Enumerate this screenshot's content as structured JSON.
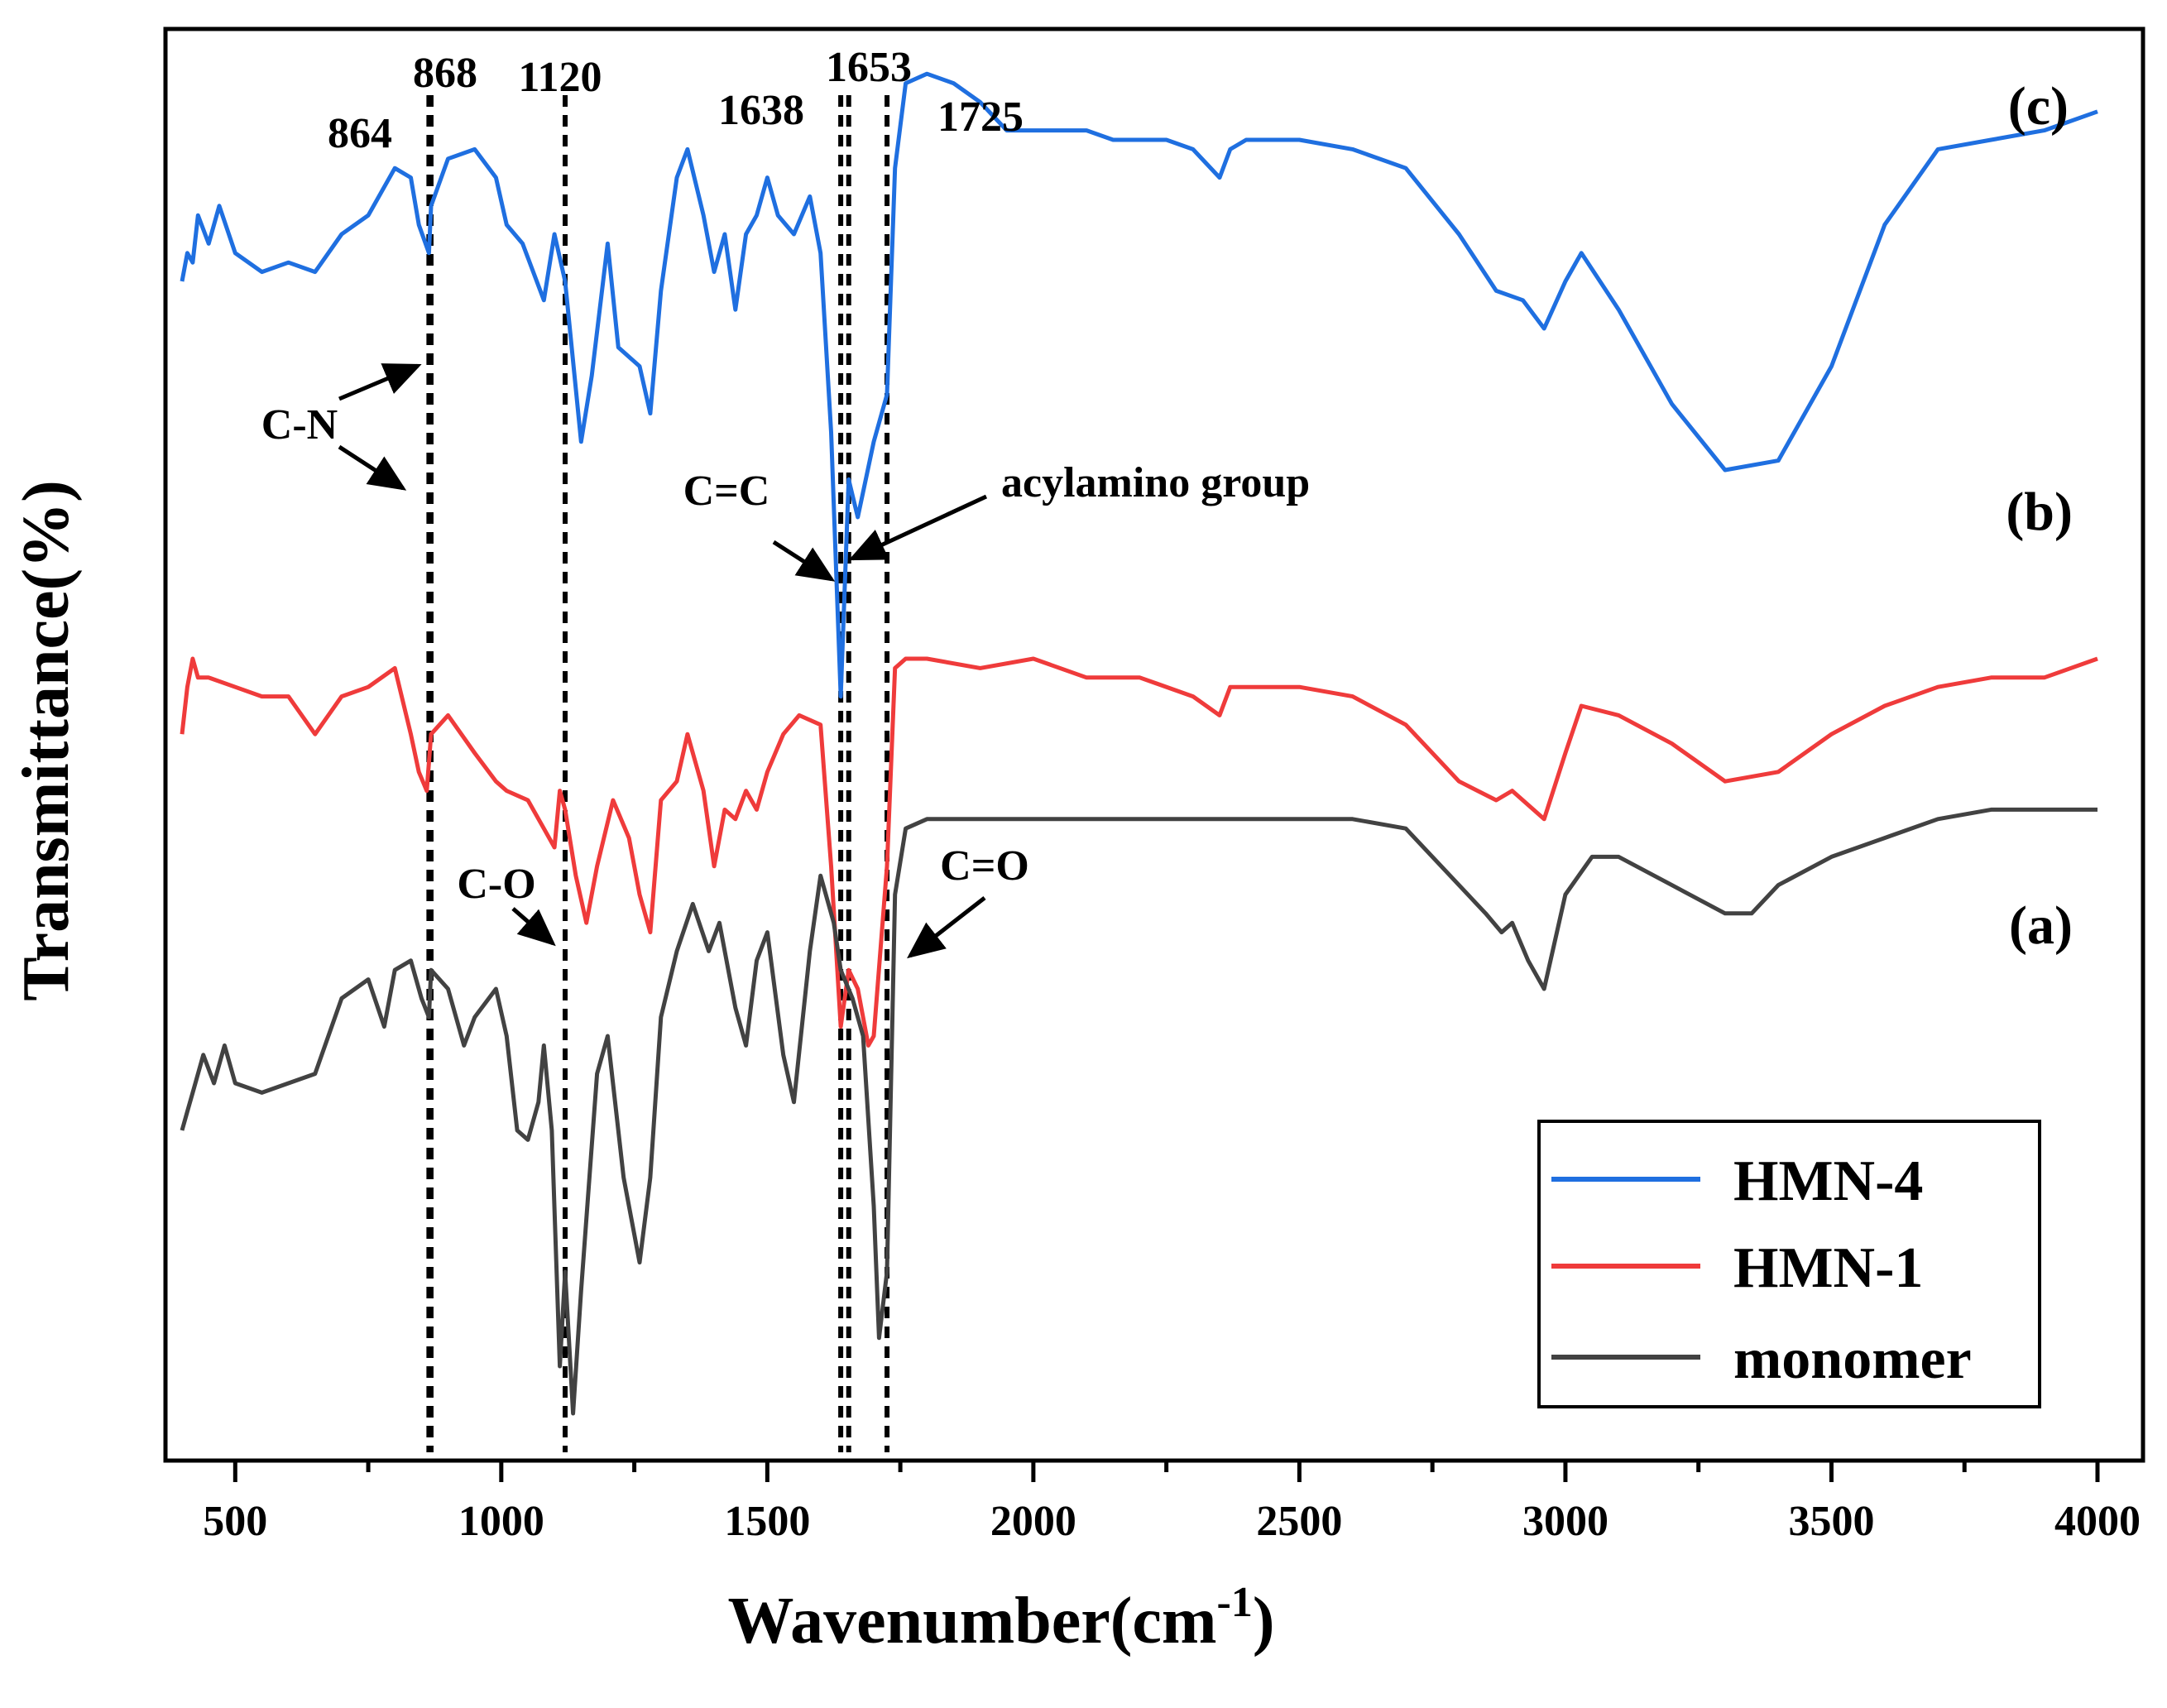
{
  "chart_data": {
    "type": "line",
    "title": "",
    "xlabel": "Wavenumber(cm",
    "xlabel_sup": "-1",
    "xlabel_close": ")",
    "ylabel": "Transmittance(%)",
    "xlim": [
      400,
      4000
    ],
    "xticks": [
      "500",
      "1000",
      "1500",
      "2000",
      "2500",
      "3000",
      "3500",
      "4000"
    ],
    "panel_labels": [
      "(c)",
      "(b)",
      "(a)"
    ],
    "marker_lines": [
      {
        "x": 864,
        "label": "864"
      },
      {
        "x": 868,
        "label": "868"
      },
      {
        "x": 1120,
        "label": "1120"
      },
      {
        "x": 1638,
        "label": "1638"
      },
      {
        "x": 1653,
        "label": "1653"
      },
      {
        "x": 1725,
        "label": "1725"
      }
    ],
    "annotations": [
      "C-N",
      "C=C",
      "acylamino group",
      "C-O",
      "C=O"
    ],
    "legend_position": "bottom-right",
    "series": [
      {
        "name": "HMN-4",
        "color": "#1f6fe0",
        "points": [
          [
            400,
            1.0
          ],
          [
            410,
            1.03
          ],
          [
            420,
            1.02
          ],
          [
            430,
            1.07
          ],
          [
            450,
            1.04
          ],
          [
            470,
            1.08
          ],
          [
            500,
            1.03
          ],
          [
            550,
            1.01
          ],
          [
            600,
            1.02
          ],
          [
            650,
            1.01
          ],
          [
            700,
            1.05
          ],
          [
            750,
            1.07
          ],
          [
            800,
            1.12
          ],
          [
            830,
            1.11
          ],
          [
            845,
            1.06
          ],
          [
            864,
            1.03
          ],
          [
            868,
            1.08
          ],
          [
            900,
            1.13
          ],
          [
            950,
            1.14
          ],
          [
            990,
            1.11
          ],
          [
            1010,
            1.06
          ],
          [
            1040,
            1.04
          ],
          [
            1080,
            0.98
          ],
          [
            1100,
            1.05
          ],
          [
            1120,
            1.0
          ],
          [
            1150,
            0.83
          ],
          [
            1170,
            0.9
          ],
          [
            1200,
            1.04
          ],
          [
            1220,
            0.93
          ],
          [
            1260,
            0.91
          ],
          [
            1280,
            0.86
          ],
          [
            1300,
            0.99
          ],
          [
            1330,
            1.11
          ],
          [
            1350,
            1.14
          ],
          [
            1380,
            1.07
          ],
          [
            1400,
            1.01
          ],
          [
            1420,
            1.05
          ],
          [
            1440,
            0.97
          ],
          [
            1460,
            1.05
          ],
          [
            1480,
            1.07
          ],
          [
            1500,
            1.11
          ],
          [
            1520,
            1.07
          ],
          [
            1550,
            1.05
          ],
          [
            1580,
            1.09
          ],
          [
            1600,
            1.03
          ],
          [
            1620,
            0.84
          ],
          [
            1638,
            0.56
          ],
          [
            1653,
            0.79
          ],
          [
            1670,
            0.75
          ],
          [
            1700,
            0.83
          ],
          [
            1725,
            0.88
          ],
          [
            1740,
            1.12
          ],
          [
            1760,
            1.21
          ],
          [
            1800,
            1.22
          ],
          [
            1850,
            1.21
          ],
          [
            1900,
            1.19
          ],
          [
            1950,
            1.16
          ],
          [
            2000,
            1.16
          ],
          [
            2100,
            1.16
          ],
          [
            2150,
            1.15
          ],
          [
            2250,
            1.15
          ],
          [
            2300,
            1.14
          ],
          [
            2350,
            1.11
          ],
          [
            2370,
            1.14
          ],
          [
            2400,
            1.15
          ],
          [
            2500,
            1.15
          ],
          [
            2600,
            1.14
          ],
          [
            2700,
            1.12
          ],
          [
            2800,
            1.05
          ],
          [
            2870,
            0.99
          ],
          [
            2920,
            0.98
          ],
          [
            2960,
            0.95
          ],
          [
            3000,
            1.0
          ],
          [
            3030,
            1.03
          ],
          [
            3100,
            0.97
          ],
          [
            3200,
            0.87
          ],
          [
            3300,
            0.8
          ],
          [
            3400,
            0.81
          ],
          [
            3500,
            0.91
          ],
          [
            3600,
            1.06
          ],
          [
            3700,
            1.14
          ],
          [
            3800,
            1.15
          ],
          [
            3900,
            1.16
          ],
          [
            4000,
            1.18
          ]
        ]
      },
      {
        "name": "HMN-1",
        "color": "#ef3b3b",
        "points": [
          [
            400,
            0.52
          ],
          [
            410,
            0.57
          ],
          [
            420,
            0.6
          ],
          [
            430,
            0.58
          ],
          [
            450,
            0.58
          ],
          [
            500,
            0.57
          ],
          [
            550,
            0.56
          ],
          [
            600,
            0.56
          ],
          [
            650,
            0.52
          ],
          [
            700,
            0.56
          ],
          [
            750,
            0.57
          ],
          [
            800,
            0.59
          ],
          [
            830,
            0.52
          ],
          [
            845,
            0.48
          ],
          [
            860,
            0.46
          ],
          [
            868,
            0.52
          ],
          [
            900,
            0.54
          ],
          [
            950,
            0.5
          ],
          [
            990,
            0.47
          ],
          [
            1010,
            0.46
          ],
          [
            1050,
            0.45
          ],
          [
            1080,
            0.42
          ],
          [
            1100,
            0.4
          ],
          [
            1110,
            0.46
          ],
          [
            1120,
            0.44
          ],
          [
            1140,
            0.37
          ],
          [
            1160,
            0.32
          ],
          [
            1180,
            0.38
          ],
          [
            1210,
            0.45
          ],
          [
            1240,
            0.41
          ],
          [
            1260,
            0.35
          ],
          [
            1280,
            0.31
          ],
          [
            1300,
            0.45
          ],
          [
            1330,
            0.47
          ],
          [
            1350,
            0.52
          ],
          [
            1380,
            0.46
          ],
          [
            1400,
            0.38
          ],
          [
            1420,
            0.44
          ],
          [
            1440,
            0.43
          ],
          [
            1460,
            0.46
          ],
          [
            1480,
            0.44
          ],
          [
            1500,
            0.48
          ],
          [
            1530,
            0.52
          ],
          [
            1560,
            0.54
          ],
          [
            1600,
            0.53
          ],
          [
            1620,
            0.38
          ],
          [
            1638,
            0.21
          ],
          [
            1653,
            0.27
          ],
          [
            1670,
            0.25
          ],
          [
            1690,
            0.19
          ],
          [
            1700,
            0.2
          ],
          [
            1725,
            0.38
          ],
          [
            1740,
            0.59
          ],
          [
            1760,
            0.6
          ],
          [
            1800,
            0.6
          ],
          [
            1900,
            0.59
          ],
          [
            2000,
            0.6
          ],
          [
            2100,
            0.58
          ],
          [
            2200,
            0.58
          ],
          [
            2300,
            0.56
          ],
          [
            2350,
            0.54
          ],
          [
            2370,
            0.57
          ],
          [
            2400,
            0.57
          ],
          [
            2500,
            0.57
          ],
          [
            2600,
            0.56
          ],
          [
            2700,
            0.53
          ],
          [
            2800,
            0.47
          ],
          [
            2870,
            0.45
          ],
          [
            2900,
            0.46
          ],
          [
            2960,
            0.43
          ],
          [
            3000,
            0.5
          ],
          [
            3030,
            0.55
          ],
          [
            3100,
            0.54
          ],
          [
            3200,
            0.51
          ],
          [
            3300,
            0.47
          ],
          [
            3400,
            0.48
          ],
          [
            3500,
            0.52
          ],
          [
            3600,
            0.55
          ],
          [
            3700,
            0.57
          ],
          [
            3800,
            0.58
          ],
          [
            3900,
            0.58
          ],
          [
            4000,
            0.6
          ]
        ]
      },
      {
        "name": "monomer",
        "color": "#424242",
        "points": [
          [
            400,
            0.1
          ],
          [
            410,
            0.12
          ],
          [
            420,
            0.14
          ],
          [
            440,
            0.18
          ],
          [
            460,
            0.15
          ],
          [
            480,
            0.19
          ],
          [
            500,
            0.15
          ],
          [
            550,
            0.14
          ],
          [
            600,
            0.15
          ],
          [
            650,
            0.16
          ],
          [
            700,
            0.24
          ],
          [
            750,
            0.26
          ],
          [
            780,
            0.21
          ],
          [
            800,
            0.27
          ],
          [
            830,
            0.28
          ],
          [
            850,
            0.24
          ],
          [
            864,
            0.22
          ],
          [
            868,
            0.27
          ],
          [
            900,
            0.25
          ],
          [
            930,
            0.19
          ],
          [
            950,
            0.22
          ],
          [
            990,
            0.25
          ],
          [
            1010,
            0.2
          ],
          [
            1030,
            0.1
          ],
          [
            1050,
            0.09
          ],
          [
            1070,
            0.13
          ],
          [
            1080,
            0.19
          ],
          [
            1095,
            0.1
          ],
          [
            1110,
            -0.15
          ],
          [
            1120,
            -0.05
          ],
          [
            1135,
            -0.2
          ],
          [
            1150,
            -0.07
          ],
          [
            1180,
            0.16
          ],
          [
            1200,
            0.2
          ],
          [
            1230,
            0.05
          ],
          [
            1260,
            -0.04
          ],
          [
            1280,
            0.05
          ],
          [
            1300,
            0.22
          ],
          [
            1330,
            0.29
          ],
          [
            1360,
            0.34
          ],
          [
            1390,
            0.29
          ],
          [
            1410,
            0.32
          ],
          [
            1440,
            0.23
          ],
          [
            1460,
            0.19
          ],
          [
            1480,
            0.28
          ],
          [
            1500,
            0.31
          ],
          [
            1530,
            0.18
          ],
          [
            1550,
            0.13
          ],
          [
            1580,
            0.29
          ],
          [
            1600,
            0.37
          ],
          [
            1625,
            0.32
          ],
          [
            1638,
            0.27
          ],
          [
            1660,
            0.24
          ],
          [
            1680,
            0.2
          ],
          [
            1700,
            0.02
          ],
          [
            1710,
            -0.12
          ],
          [
            1725,
            -0.05
          ],
          [
            1740,
            0.35
          ],
          [
            1760,
            0.42
          ],
          [
            1800,
            0.43
          ],
          [
            1900,
            0.43
          ],
          [
            2000,
            0.43
          ],
          [
            2200,
            0.43
          ],
          [
            2400,
            0.43
          ],
          [
            2600,
            0.43
          ],
          [
            2700,
            0.42
          ],
          [
            2800,
            0.36
          ],
          [
            2850,
            0.33
          ],
          [
            2880,
            0.31
          ],
          [
            2900,
            0.32
          ],
          [
            2930,
            0.28
          ],
          [
            2960,
            0.25
          ],
          [
            3000,
            0.35
          ],
          [
            3050,
            0.39
          ],
          [
            3100,
            0.39
          ],
          [
            3200,
            0.36
          ],
          [
            3300,
            0.33
          ],
          [
            3350,
            0.33
          ],
          [
            3400,
            0.36
          ],
          [
            3500,
            0.39
          ],
          [
            3600,
            0.41
          ],
          [
            3700,
            0.43
          ],
          [
            3800,
            0.44
          ],
          [
            3900,
            0.44
          ],
          [
            4000,
            0.44
          ]
        ]
      }
    ]
  }
}
